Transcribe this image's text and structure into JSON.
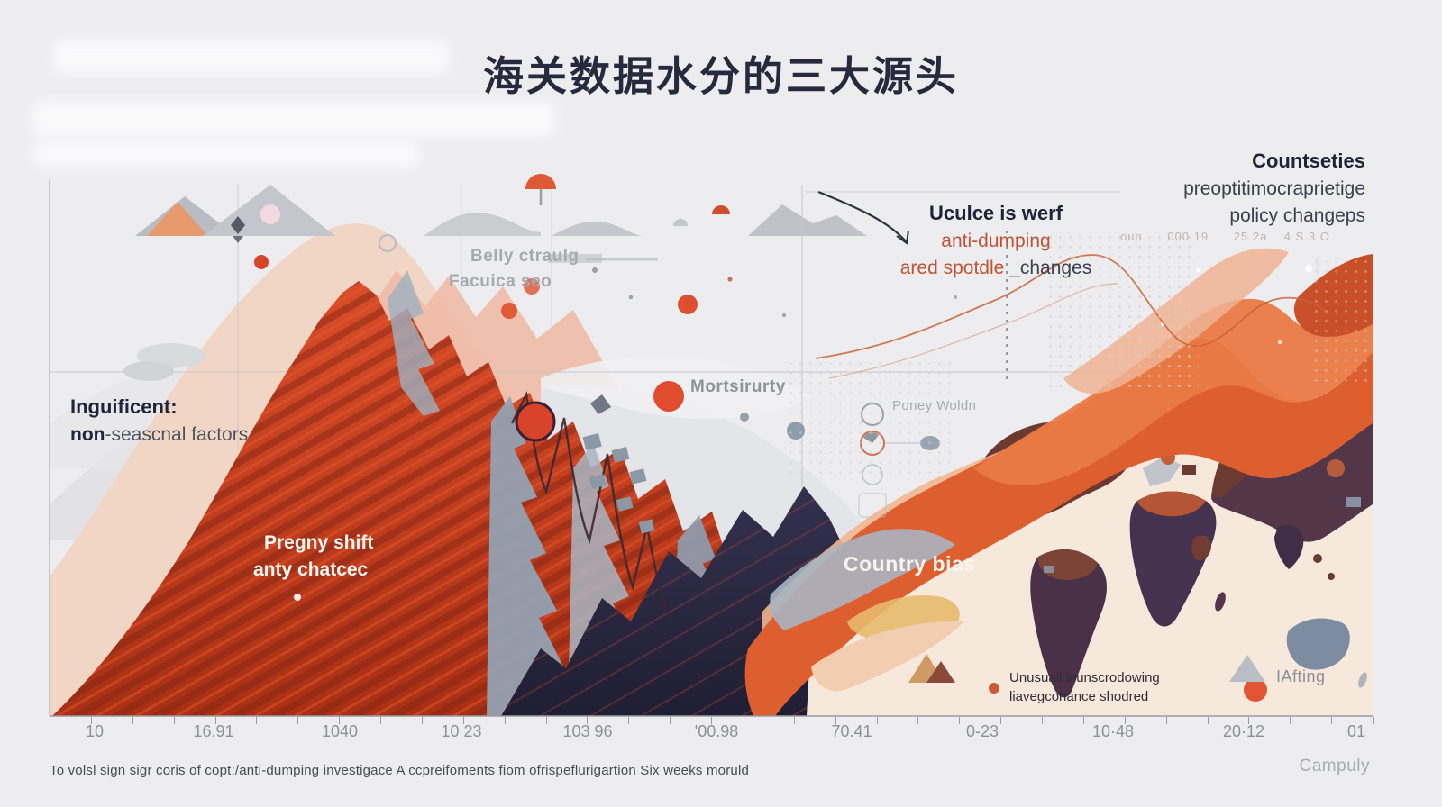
{
  "title": "海关数据水分的三大源头",
  "colors": {
    "background": "#ededef",
    "accent_red": "#c9401f",
    "accent_orange": "#dd5f30",
    "navy": "#272540",
    "steel_blue": "#93a4b5",
    "cream": "#f6e9dc",
    "peach": "#eec4a6",
    "map_purple": "#46334e",
    "map_maroon": "#6d3a31",
    "text_dark": "#20243a",
    "text_orange": "#c05334",
    "text_gray": "#8d9099"
  },
  "annotations": {
    "top_right": {
      "title": "Countseties",
      "line2": "preoptitimocraprietige",
      "line3": "policy changeps"
    },
    "faint_row": "oun      000 19      25 2a    4 S 3 O",
    "callout": {
      "heading": "Uculce is werf",
      "accent_line": "anti-dumping",
      "accent_part": "ared spotdle",
      "dark_part": " _changes"
    },
    "seasonal": {
      "heading": "Inguificent:",
      "bold_word": "non",
      "rest": "-seascnal factors"
    },
    "shift": {
      "line1": "Pregny shift",
      "line2": "anty chatcec"
    },
    "ghost_label": {
      "line1": "Belly ctraulg",
      "line2": "Facuica seo"
    },
    "mortsirurty": "Mortsirurty",
    "poney": "Poney Woldn",
    "country_bias": "Country bias",
    "unusual": {
      "line1": "Unusuall inunscrodowing",
      "line2": "liavegcohance shodred"
    },
    "lafting": "IAfting"
  },
  "x_axis": {
    "ticks": [
      "10",
      "16.91",
      "1040",
      "10 23",
      "103 96",
      "'00.98",
      "70.41",
      "0-23",
      "10·48",
      "20·12",
      "01"
    ],
    "tick_count": 33
  },
  "footer": {
    "caption": "To volsl sign sigr coris of copt:/anti-dumping investigace A ccpreifoments fiom ofrispeflurigartion Six weeks moruld",
    "brand": "Campuly"
  },
  "chart_data": {
    "type": "area",
    "title": "海关数据水分的三大源头",
    "xlabel": "",
    "ylabel": "",
    "ylim": [
      0,
      100
    ],
    "grid": "faint",
    "legend_position": "none",
    "x_tick_labels": [
      "10",
      "16.91",
      "1040",
      "10 23",
      "103 96",
      "'00.98",
      "70.41",
      "0-23",
      "10·48",
      "20·12",
      "01"
    ],
    "note": "abstract decorative landscape; relative heights (0-100) estimated at each x tick",
    "series": [
      {
        "name": "red-mountain",
        "values": [
          5,
          45,
          95,
          78,
          48,
          15,
          0,
          0,
          0,
          0,
          0
        ]
      },
      {
        "name": "salmon-ridge",
        "values": [
          12,
          55,
          80,
          62,
          42,
          22,
          8,
          0,
          0,
          0,
          0
        ]
      },
      {
        "name": "steel-peaks",
        "values": [
          0,
          8,
          42,
          58,
          52,
          30,
          8,
          0,
          0,
          0,
          0
        ]
      },
      {
        "name": "navy-mountain",
        "values": [
          0,
          0,
          0,
          6,
          40,
          78,
          35,
          0,
          0,
          0,
          0
        ]
      },
      {
        "name": "orange-wave",
        "values": [
          0,
          0,
          0,
          0,
          8,
          28,
          52,
          62,
          48,
          58,
          70
        ]
      },
      {
        "name": "peach-band",
        "values": [
          0,
          0,
          0,
          0,
          4,
          18,
          38,
          46,
          36,
          42,
          50
        ]
      }
    ],
    "annotations_on_chart": [
      "Inguificent: non-seascnal factors",
      "Pregny shift anty chatcec",
      "Uculce is werf anti-dumping ared spotdle _changes",
      "Country bias"
    ]
  }
}
